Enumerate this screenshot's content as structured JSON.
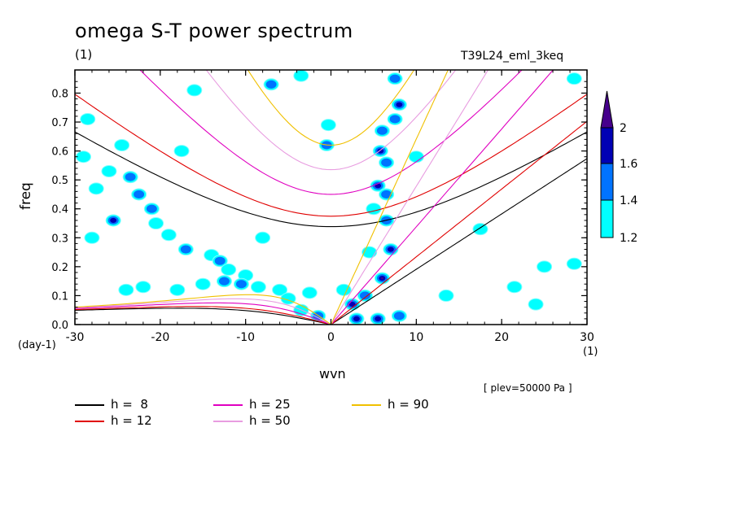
{
  "header": {
    "title": "omega S-T power spectrum",
    "unit_top": "(1)",
    "run": "T39L24_eml_3keq"
  },
  "axes": {
    "ylabel": "freq",
    "xlabel": "wvn",
    "y_unit": "(day-1)",
    "x_unit": "(1)"
  },
  "footnote": "[ plev=50000 Pa ]",
  "chart_data": {
    "type": "heatmap",
    "title": "omega S-T power spectrum",
    "xlabel": "wvn",
    "ylabel": "freq",
    "xlim": [
      -30,
      30
    ],
    "ylim": [
      0,
      0.88
    ],
    "x_ticks": [
      -30,
      -20,
      -10,
      0,
      10,
      20,
      30
    ],
    "x_tick_labels": [
      "-30",
      "-20",
      "-10",
      "0",
      "10",
      "20",
      "30"
    ],
    "y_ticks": [
      0,
      0.1,
      0.2,
      0.3,
      0.4,
      0.5,
      0.6,
      0.7,
      0.8
    ],
    "y_tick_labels": [
      "0.0",
      "0.1",
      "0.2",
      "0.3",
      "0.4",
      "0.5",
      "0.6",
      "0.7",
      "0.8"
    ],
    "colorbar": {
      "levels": [
        1.2,
        1.4,
        1.6,
        2
      ],
      "level_labels": [
        "1.2",
        "1.4",
        "1.6",
        "2"
      ],
      "colors": [
        "#00ffff",
        "#0073ff",
        "#0000b4",
        "#46008c"
      ]
    },
    "contour_patches": [
      {
        "x": -28.5,
        "y": 0.71,
        "level": 1
      },
      {
        "x": -27.5,
        "y": 0.47,
        "level": 1
      },
      {
        "x": -26,
        "y": 0.53,
        "level": 1
      },
      {
        "x": -24.5,
        "y": 0.62,
        "level": 1
      },
      {
        "x": -23.5,
        "y": 0.51,
        "level": 2
      },
      {
        "x": -22.5,
        "y": 0.45,
        "level": 2
      },
      {
        "x": -21,
        "y": 0.4,
        "level": 2
      },
      {
        "x": -20.5,
        "y": 0.35,
        "level": 1
      },
      {
        "x": -25.5,
        "y": 0.36,
        "level": 3
      },
      {
        "x": -28,
        "y": 0.3,
        "level": 1
      },
      {
        "x": -19,
        "y": 0.31,
        "level": 1
      },
      {
        "x": -17,
        "y": 0.26,
        "level": 2
      },
      {
        "x": -14,
        "y": 0.24,
        "level": 1
      },
      {
        "x": -13,
        "y": 0.22,
        "level": 2
      },
      {
        "x": -12,
        "y": 0.19,
        "level": 1
      },
      {
        "x": -10,
        "y": 0.17,
        "level": 1
      },
      {
        "x": -12.5,
        "y": 0.15,
        "level": 2
      },
      {
        "x": -10.5,
        "y": 0.14,
        "level": 2
      },
      {
        "x": -8.5,
        "y": 0.13,
        "level": 1
      },
      {
        "x": -6,
        "y": 0.12,
        "level": 1
      },
      {
        "x": -22,
        "y": 0.13,
        "level": 1
      },
      {
        "x": -18,
        "y": 0.12,
        "level": 1
      },
      {
        "x": -15,
        "y": 0.14,
        "level": 1
      },
      {
        "x": -24,
        "y": 0.12,
        "level": 1
      },
      {
        "x": -16,
        "y": 0.81,
        "level": 1
      },
      {
        "x": -7,
        "y": 0.83,
        "level": 2
      },
      {
        "x": -3.5,
        "y": 0.86,
        "level": 1
      },
      {
        "x": -0.5,
        "y": 0.62,
        "level": 2
      },
      {
        "x": -0.3,
        "y": 0.69,
        "level": 1
      },
      {
        "x": 7.5,
        "y": 0.85,
        "level": 2
      },
      {
        "x": 8,
        "y": 0.76,
        "level": 3
      },
      {
        "x": 7.5,
        "y": 0.71,
        "level": 2
      },
      {
        "x": 6,
        "y": 0.67,
        "level": 2
      },
      {
        "x": 5.8,
        "y": 0.6,
        "level": 3
      },
      {
        "x": 6.5,
        "y": 0.56,
        "level": 2
      },
      {
        "x": 5.5,
        "y": 0.48,
        "level": 3
      },
      {
        "x": 6.5,
        "y": 0.45,
        "level": 2
      },
      {
        "x": 5,
        "y": 0.4,
        "level": 1
      },
      {
        "x": 6.5,
        "y": 0.36,
        "level": 2
      },
      {
        "x": 7,
        "y": 0.26,
        "level": 3
      },
      {
        "x": 6,
        "y": 0.16,
        "level": 4
      },
      {
        "x": 4.5,
        "y": 0.25,
        "level": 1
      },
      {
        "x": 2.5,
        "y": 0.07,
        "level": 3
      },
      {
        "x": 3,
        "y": 0.02,
        "level": 3
      },
      {
        "x": 5.5,
        "y": 0.02,
        "level": 3
      },
      {
        "x": 8,
        "y": 0.03,
        "level": 2
      },
      {
        "x": 1.5,
        "y": 0.12,
        "level": 1
      },
      {
        "x": -1.5,
        "y": 0.03,
        "level": 2
      },
      {
        "x": -3.5,
        "y": 0.05,
        "level": 1
      },
      {
        "x": 13.5,
        "y": 0.1,
        "level": 1
      },
      {
        "x": 17.5,
        "y": 0.33,
        "level": 1
      },
      {
        "x": 28.5,
        "y": 0.21,
        "level": 1
      },
      {
        "x": 25,
        "y": 0.2,
        "level": 1
      },
      {
        "x": 21.5,
        "y": 0.13,
        "level": 1
      },
      {
        "x": 28.5,
        "y": 0.85,
        "level": 1
      },
      {
        "x": 24,
        "y": 0.07,
        "level": 1
      },
      {
        "x": -29,
        "y": 0.58,
        "level": 1
      },
      {
        "x": -2.5,
        "y": 0.11,
        "level": 1
      },
      {
        "x": 4,
        "y": 0.1,
        "level": 2
      },
      {
        "x": -8,
        "y": 0.3,
        "level": 1
      },
      {
        "x": -5,
        "y": 0.09,
        "level": 1
      },
      {
        "x": 10,
        "y": 0.58,
        "level": 1
      },
      {
        "x": -17.5,
        "y": 0.6,
        "level": 1
      }
    ],
    "series": [
      {
        "name": "h =  8",
        "color": "#000000",
        "equivalent_depth": 8
      },
      {
        "name": "h = 12",
        "color": "#e00000",
        "equivalent_depth": 12
      },
      {
        "name": "h = 25",
        "color": "#e000c0",
        "equivalent_depth": 25
      },
      {
        "name": "h = 50",
        "color": "#e89ce0",
        "equivalent_depth": 50
      },
      {
        "name": "h = 90",
        "color": "#f0c000",
        "equivalent_depth": 90
      }
    ]
  }
}
